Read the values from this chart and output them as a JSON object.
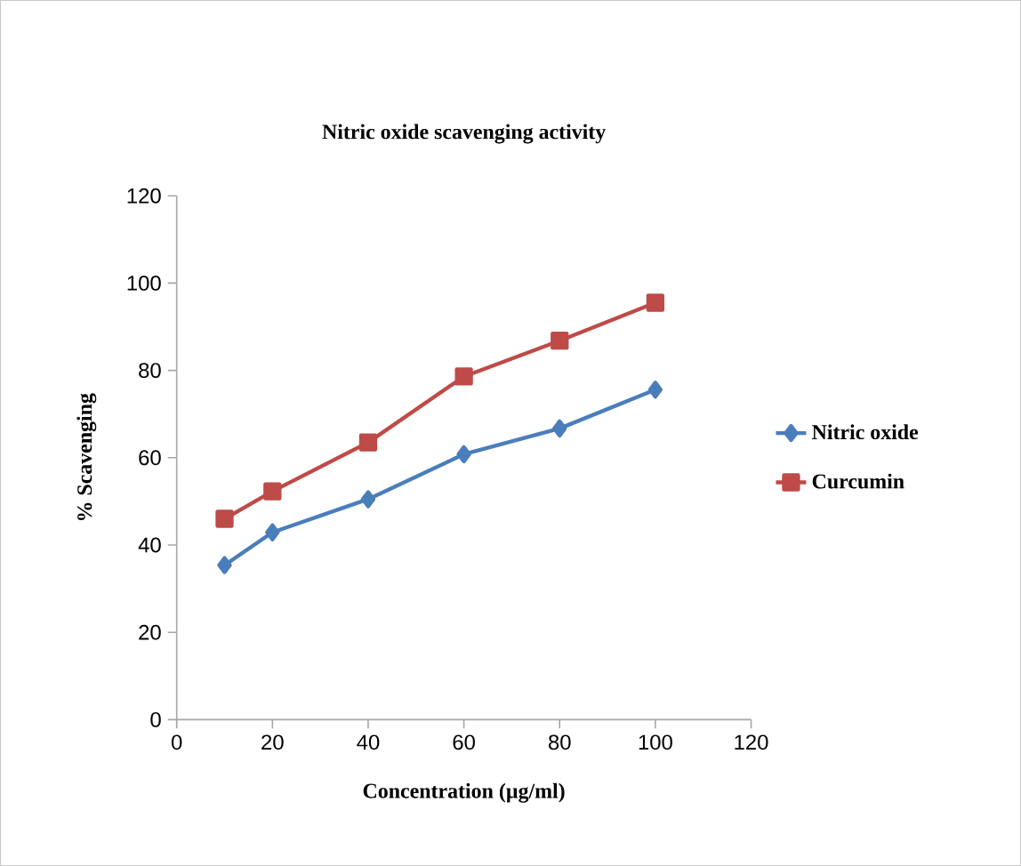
{
  "chart_data": {
    "type": "line",
    "title": "Nitric oxide scavenging activity",
    "xlabel": "Concentration (µg/ml)",
    "ylabel": "% Scavenging",
    "x": [
      10,
      20,
      40,
      60,
      80,
      100
    ],
    "series": [
      {
        "name": "Nitric oxide",
        "color": "#4a7ebb",
        "marker": "diamond",
        "values": [
          35.4,
          42.9,
          50.5,
          60.8,
          66.7,
          75.6
        ]
      },
      {
        "name": "Curcumin",
        "color": "#be4b48",
        "marker": "square",
        "values": [
          46,
          52.3,
          63.5,
          78.6,
          86.8,
          95.5
        ]
      }
    ],
    "xlim": [
      0,
      120
    ],
    "xticks": [
      0,
      20,
      40,
      60,
      80,
      100,
      120
    ],
    "ylim": [
      0,
      120
    ],
    "yticks": [
      0,
      20,
      40,
      60,
      80,
      100,
      120
    ],
    "grid": false,
    "legend": "right"
  }
}
